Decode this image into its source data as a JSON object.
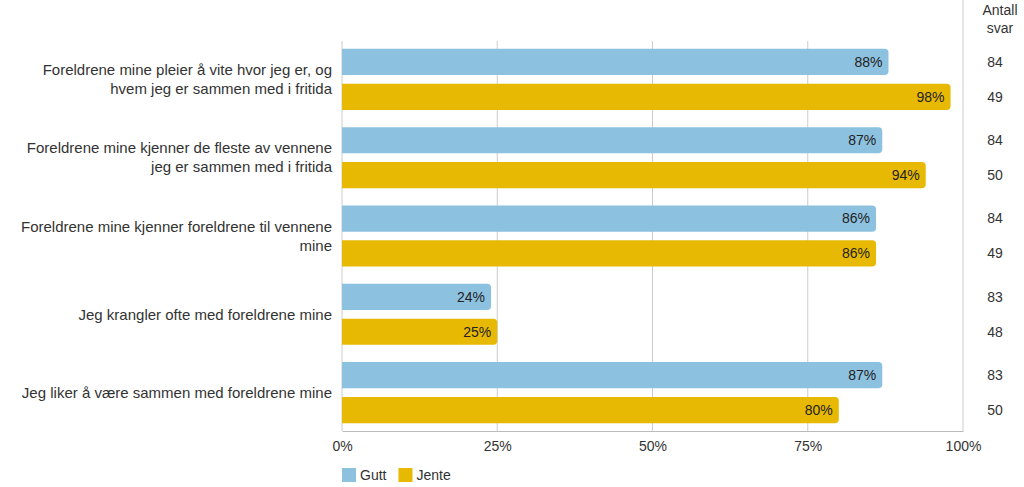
{
  "chart_data": {
    "type": "bar",
    "orientation": "horizontal",
    "categories": [
      "Foreldrene mine pleier å vite hvor jeg er, og hvem jeg er sammen med i fritida",
      "Foreldrene mine kjenner de fleste av vennene jeg er sammen med i fritida",
      "Foreldrene mine kjenner foreldrene til vennene mine",
      "Jeg krangler ofte med foreldrene mine",
      "Jeg liker å være sammen med foreldrene mine"
    ],
    "series": [
      {
        "name": "Gutt",
        "color": "#8dc1e0",
        "values": [
          88,
          87,
          86,
          24,
          87
        ],
        "value_labels": [
          "88%",
          "87%",
          "86%",
          "24%",
          "87%"
        ],
        "counts": [
          84,
          84,
          84,
          83,
          83
        ]
      },
      {
        "name": "Jente",
        "color": "#e8b903",
        "values": [
          98,
          94,
          86,
          25,
          80
        ],
        "value_labels": [
          "98%",
          "94%",
          "86%",
          "25%",
          "80%"
        ],
        "counts": [
          49,
          50,
          49,
          48,
          50
        ]
      }
    ],
    "counts_title": "Antall svar",
    "xlim": [
      0,
      100
    ],
    "xticks": [
      {
        "value": 0,
        "label": "0%"
      },
      {
        "value": 25,
        "label": "25%"
      },
      {
        "value": 50,
        "label": "50%"
      },
      {
        "value": 75,
        "label": "75%"
      },
      {
        "value": 100,
        "label": "100%"
      }
    ],
    "grid": true,
    "data_labels": true,
    "legend": "bottom-left"
  }
}
